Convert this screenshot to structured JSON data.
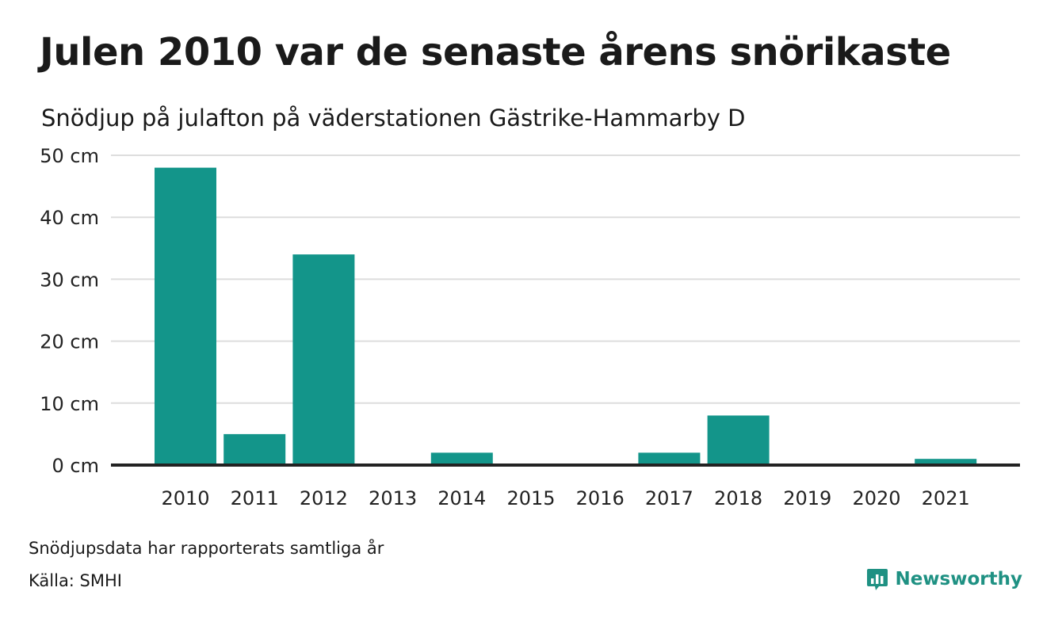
{
  "header": {
    "title": "Julen 2010 var de senaste årens snörikaste",
    "subtitle": "Snödjup på julafton på väderstationen Gästrike-Hammarby D"
  },
  "footer": {
    "note": "Snödjupsdata har rapporterats samtliga år",
    "source": "Källa: SMHI",
    "brand": "Newsworthy",
    "brand_icon": "bar-chart-logo-icon"
  },
  "colors": {
    "bar": "#13958a",
    "grid": "#dddddd",
    "baseline": "#222222",
    "brand": "#1f9183"
  },
  "chart_data": {
    "type": "bar",
    "title": "Julen 2010 var de senaste årens snörikaste",
    "subtitle": "Snödjup på julafton på väderstationen Gästrike-Hammarby D",
    "categories": [
      "2010",
      "2011",
      "2012",
      "2013",
      "2014",
      "2015",
      "2016",
      "2017",
      "2018",
      "2019",
      "2020",
      "2021"
    ],
    "values": [
      48,
      5,
      34,
      0,
      2,
      0,
      0,
      2,
      8,
      0,
      0,
      1
    ],
    "unit": "cm",
    "yticks": [
      0,
      10,
      20,
      30,
      40,
      50
    ],
    "ytick_labels": [
      "0 cm",
      "10 cm",
      "20 cm",
      "30 cm",
      "40 cm",
      "50 cm"
    ],
    "ylim": [
      0,
      50
    ],
    "grid": true,
    "legend": "none"
  }
}
